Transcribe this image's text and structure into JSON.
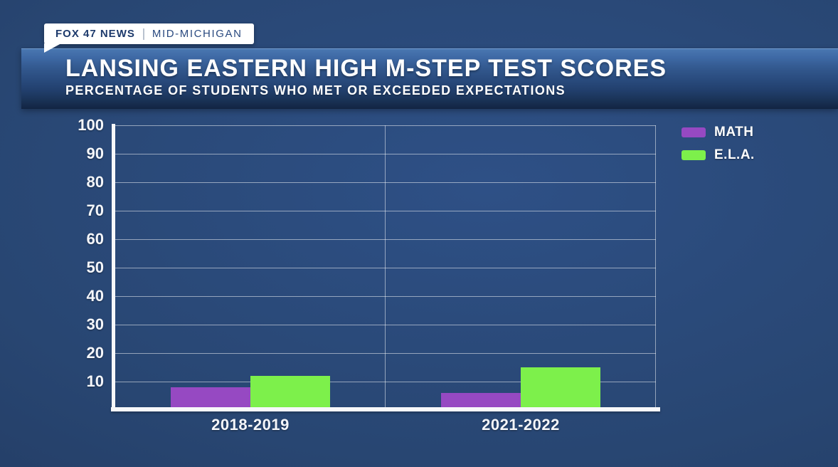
{
  "badge": {
    "station": "FOX 47 NEWS",
    "region": "MID-MICHIGAN"
  },
  "header": {
    "title": "LANSING EASTERN HIGH M-STEP TEST SCORES",
    "subtitle": "PERCENTAGE OF STUDENTS WHO MET OR EXCEEDED EXPECTATIONS"
  },
  "colors": {
    "math_purple": "#9649c2",
    "ela_green": "#7df04b",
    "background_blue": "#27436f",
    "banner_top_blue": "#4a78b2",
    "banner_bottom_blue": "#142746",
    "badge_text_navy": "#1d3a6c",
    "axis_white": "#ffffff"
  },
  "chart_data": {
    "type": "bar",
    "title": "LANSING EASTERN HIGH M-STEP TEST SCORES",
    "subtitle": "PERCENTAGE OF STUDENTS WHO MET OR EXCEEDED EXPECTATIONS",
    "categories": [
      "2018-2019",
      "2021-2022"
    ],
    "series": [
      {
        "name": "MATH",
        "color": "#9649c2",
        "values": [
          8,
          6
        ]
      },
      {
        "name": "E.L.A.",
        "color": "#7df04b",
        "values": [
          12,
          15
        ]
      }
    ],
    "xlabel": "",
    "ylabel": "",
    "ylim": [
      0,
      100
    ],
    "yticks": [
      10,
      20,
      30,
      40,
      50,
      60,
      70,
      80,
      90,
      100
    ],
    "grid": true,
    "legend_position": "top-right"
  }
}
